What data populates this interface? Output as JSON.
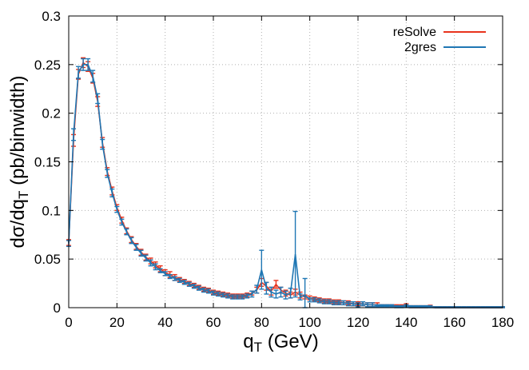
{
  "chart_data": {
    "type": "line",
    "title": "",
    "xlabel": {
      "main": "q",
      "sub": "T",
      "rest": " (GeV)"
    },
    "ylabel": {
      "main": "dσ/dq",
      "sub": "T",
      "rest": " (pb/binwidth)"
    },
    "xlim": [
      0,
      180
    ],
    "ylim": [
      0,
      0.3
    ],
    "x_ticks": [
      "0",
      "20",
      "40",
      "60",
      "80",
      "100",
      "120",
      "140",
      "160",
      "180"
    ],
    "y_ticks": [
      "0",
      "0.05",
      "0.1",
      "0.15",
      "0.2",
      "0.25",
      "0.3"
    ],
    "grid": true,
    "legend_position": "top-right",
    "series": [
      {
        "name": "reSolve",
        "color": "#e8331c",
        "points": [
          [
            0,
            0.067
          ],
          [
            2,
            0.172
          ],
          [
            4,
            0.24
          ],
          [
            6,
            0.252
          ],
          [
            8,
            0.248
          ],
          [
            10,
            0.236
          ],
          [
            12,
            0.212
          ],
          [
            14,
            0.17
          ],
          [
            16,
            0.14
          ],
          [
            18,
            0.12
          ],
          [
            20,
            0.103
          ],
          [
            22,
            0.09
          ],
          [
            24,
            0.079
          ],
          [
            26,
            0.07
          ],
          [
            28,
            0.063
          ],
          [
            30,
            0.057
          ],
          [
            32,
            0.052
          ],
          [
            34,
            0.048
          ],
          [
            36,
            0.044
          ],
          [
            38,
            0.04
          ],
          [
            40,
            0.036
          ],
          [
            42,
            0.034
          ],
          [
            44,
            0.031
          ],
          [
            46,
            0.029
          ],
          [
            48,
            0.027
          ],
          [
            50,
            0.025
          ],
          [
            52,
            0.023
          ],
          [
            54,
            0.021
          ],
          [
            56,
            0.019
          ],
          [
            58,
            0.018
          ],
          [
            60,
            0.016
          ],
          [
            62,
            0.015
          ],
          [
            64,
            0.014
          ],
          [
            66,
            0.013
          ],
          [
            68,
            0.012
          ],
          [
            70,
            0.012
          ],
          [
            72,
            0.012
          ],
          [
            74,
            0.013
          ],
          [
            76,
            0.015
          ],
          [
            78,
            0.018
          ],
          [
            80,
            0.026
          ],
          [
            82,
            0.022
          ],
          [
            84,
            0.017
          ],
          [
            86,
            0.024
          ],
          [
            88,
            0.018
          ],
          [
            90,
            0.015
          ],
          [
            92,
            0.013
          ],
          [
            94,
            0.016
          ],
          [
            96,
            0.013
          ],
          [
            98,
            0.011
          ],
          [
            100,
            0.01
          ],
          [
            102,
            0.009
          ],
          [
            104,
            0.008
          ],
          [
            106,
            0.007
          ],
          [
            108,
            0.007
          ],
          [
            110,
            0.006
          ],
          [
            112,
            0.006
          ],
          [
            114,
            0.005
          ],
          [
            116,
            0.005
          ],
          [
            118,
            0.004
          ],
          [
            120,
            0.004
          ],
          [
            122,
            0.004
          ],
          [
            124,
            0.003
          ],
          [
            126,
            0.003
          ],
          [
            128,
            0.003
          ],
          [
            130,
            0.002
          ],
          [
            132,
            0.002
          ],
          [
            134,
            0.002
          ],
          [
            136,
            0.002
          ],
          [
            138,
            0.002
          ],
          [
            140,
            0.0025
          ],
          [
            142,
            0.001
          ],
          [
            144,
            0.001
          ],
          [
            146,
            0.001
          ],
          [
            148,
            0.001
          ],
          [
            150,
            0.0015
          ],
          [
            152,
            0.0
          ],
          [
            154,
            0.0
          ],
          [
            156,
            0.0
          ],
          [
            158,
            0.0
          ],
          [
            160,
            0.0
          ],
          [
            162,
            0.0
          ],
          [
            164,
            0.0
          ],
          [
            166,
            0.0
          ],
          [
            168,
            0.0
          ],
          [
            170,
            0.0
          ],
          [
            172,
            0.0
          ],
          [
            174,
            0.0
          ],
          [
            176,
            0.0
          ],
          [
            178,
            0.0
          ],
          [
            180,
            0.0
          ]
        ],
        "errors": [
          0.003,
          0.006,
          0.005,
          0.005,
          0.005,
          0.005,
          0.005,
          0.005,
          0.004,
          0.004,
          0.003,
          0.003,
          0.003,
          0.003,
          0.003,
          0.003,
          0.003,
          0.003,
          0.003,
          0.003,
          0.003,
          0.003,
          0.003,
          0.002,
          0.002,
          0.002,
          0.002,
          0.002,
          0.002,
          0.002,
          0.002,
          0.002,
          0.002,
          0.002,
          0.002,
          0.002,
          0.002,
          0.002,
          0.002,
          0.003,
          0.004,
          0.004,
          0.004,
          0.004,
          0.003,
          0.003,
          0.003,
          0.003,
          0.003,
          0.002,
          0.002,
          0.002,
          0.002,
          0.002,
          0.002,
          0.002,
          0.002,
          0.002,
          0.002,
          0.002,
          0.002,
          0.002,
          0.002,
          0.002,
          0.002,
          0.001,
          0.001,
          0.001,
          0.001,
          0.001,
          0.0015,
          0.001,
          0.001,
          0.001,
          0.001,
          0.001,
          0.001,
          0.001,
          0.001,
          0.001,
          0.001,
          0.001,
          0.001,
          0.001,
          0.001,
          0.001,
          0.001,
          0.001,
          0.001,
          0.001,
          0.001
        ]
      },
      {
        "name": "2gres",
        "color": "#1f77b4",
        "points": [
          [
            0,
            0.066
          ],
          [
            2,
            0.178
          ],
          [
            4,
            0.242
          ],
          [
            6,
            0.25
          ],
          [
            8,
            0.25
          ],
          [
            10,
            0.238
          ],
          [
            12,
            0.215
          ],
          [
            14,
            0.168
          ],
          [
            16,
            0.138
          ],
          [
            18,
            0.118
          ],
          [
            20,
            0.101
          ],
          [
            22,
            0.088
          ],
          [
            24,
            0.078
          ],
          [
            26,
            0.069
          ],
          [
            28,
            0.062
          ],
          [
            30,
            0.056
          ],
          [
            32,
            0.051
          ],
          [
            34,
            0.046
          ],
          [
            36,
            0.042
          ],
          [
            38,
            0.038
          ],
          [
            40,
            0.035
          ],
          [
            42,
            0.032
          ],
          [
            44,
            0.03
          ],
          [
            46,
            0.028
          ],
          [
            48,
            0.026
          ],
          [
            50,
            0.024
          ],
          [
            52,
            0.022
          ],
          [
            54,
            0.02
          ],
          [
            56,
            0.018
          ],
          [
            58,
            0.017
          ],
          [
            60,
            0.015
          ],
          [
            62,
            0.014
          ],
          [
            64,
            0.013
          ],
          [
            66,
            0.012
          ],
          [
            68,
            0.011
          ],
          [
            70,
            0.011
          ],
          [
            72,
            0.011
          ],
          [
            74,
            0.012
          ],
          [
            76,
            0.014
          ],
          [
            78,
            0.019
          ],
          [
            80,
            0.039
          ],
          [
            82,
            0.02
          ],
          [
            84,
            0.016
          ],
          [
            86,
            0.014
          ],
          [
            88,
            0.016
          ],
          [
            90,
            0.013
          ],
          [
            92,
            0.015
          ],
          [
            94,
            0.055
          ],
          [
            96,
            0.011
          ],
          [
            98,
            0.013
          ],
          [
            100,
            0.008
          ],
          [
            102,
            0.008
          ],
          [
            104,
            0.007
          ],
          [
            106,
            0.006
          ],
          [
            108,
            0.006
          ],
          [
            110,
            0.005
          ],
          [
            112,
            0.005
          ],
          [
            114,
            0.005
          ],
          [
            116,
            0.004
          ],
          [
            118,
            0.004
          ],
          [
            120,
            0.003
          ],
          [
            122,
            0.004
          ],
          [
            124,
            0.003
          ],
          [
            126,
            0.003
          ],
          [
            128,
            0.002
          ],
          [
            130,
            0.002
          ],
          [
            132,
            0.002
          ],
          [
            134,
            0.002
          ],
          [
            136,
            0.001
          ],
          [
            138,
            0.001
          ],
          [
            140,
            0.002
          ],
          [
            142,
            0.001
          ],
          [
            144,
            0.001
          ],
          [
            146,
            0.001
          ],
          [
            148,
            0.001
          ],
          [
            150,
            0.001
          ],
          [
            152,
            0.0
          ],
          [
            154,
            0.0
          ],
          [
            156,
            0.0
          ],
          [
            158,
            0.0
          ],
          [
            160,
            0.0
          ],
          [
            162,
            0.0
          ],
          [
            164,
            0.0
          ],
          [
            166,
            0.0
          ],
          [
            168,
            0.0
          ],
          [
            170,
            0.0
          ],
          [
            172,
            0.0
          ],
          [
            174,
            0.0
          ],
          [
            176,
            0.0
          ],
          [
            178,
            0.0
          ],
          [
            180,
            0.0
          ]
        ],
        "errors": [
          0.003,
          0.006,
          0.006,
          0.006,
          0.006,
          0.006,
          0.005,
          0.005,
          0.004,
          0.004,
          0.003,
          0.003,
          0.003,
          0.003,
          0.003,
          0.003,
          0.003,
          0.003,
          0.003,
          0.002,
          0.002,
          0.002,
          0.002,
          0.002,
          0.002,
          0.002,
          0.002,
          0.002,
          0.002,
          0.002,
          0.002,
          0.002,
          0.002,
          0.002,
          0.002,
          0.002,
          0.002,
          0.002,
          0.003,
          0.004,
          0.02,
          0.006,
          0.005,
          0.004,
          0.005,
          0.004,
          0.005,
          0.044,
          0.003,
          0.017,
          0.002,
          0.002,
          0.002,
          0.002,
          0.002,
          0.002,
          0.002,
          0.002,
          0.002,
          0.002,
          0.002,
          0.002,
          0.002,
          0.002,
          0.001,
          0.001,
          0.001,
          0.001,
          0.001,
          0.001,
          0.001,
          0.001,
          0.001,
          0.001,
          0.001,
          0.001,
          0.001,
          0.001,
          0.001,
          0.001,
          0.001,
          0.001,
          0.001,
          0.001,
          0.001,
          0.001,
          0.001,
          0.001,
          0.001,
          0.001,
          0.001
        ]
      }
    ]
  }
}
